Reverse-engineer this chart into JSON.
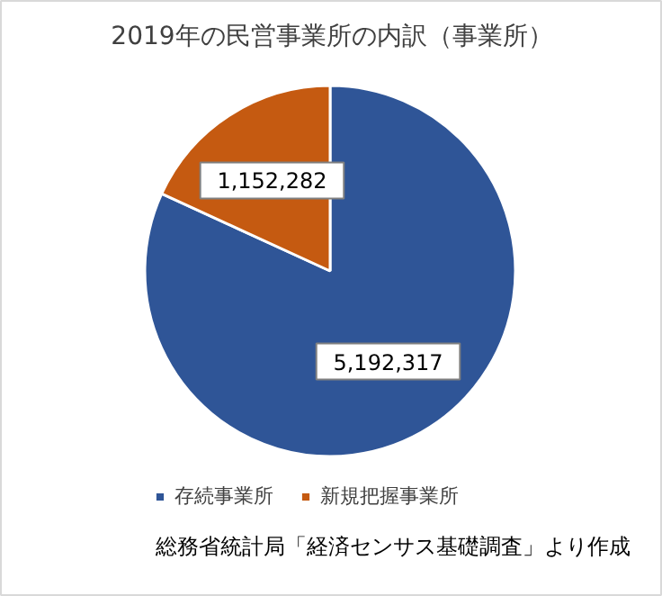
{
  "chart_data": {
    "type": "pie",
    "title": "2019年の民営事業所の内訳（事業所）",
    "categories": [
      "存続事業所",
      "新規把握事業所"
    ],
    "values": [
      5192317,
      1152282
    ],
    "colors": [
      "#2f5597",
      "#c55a11"
    ],
    "value_labels": [
      "5,192,317",
      "1,152,282"
    ],
    "legend": "bottom",
    "annotations": [
      "総務省統計局「経済センサス基礎調査」より作成"
    ]
  }
}
